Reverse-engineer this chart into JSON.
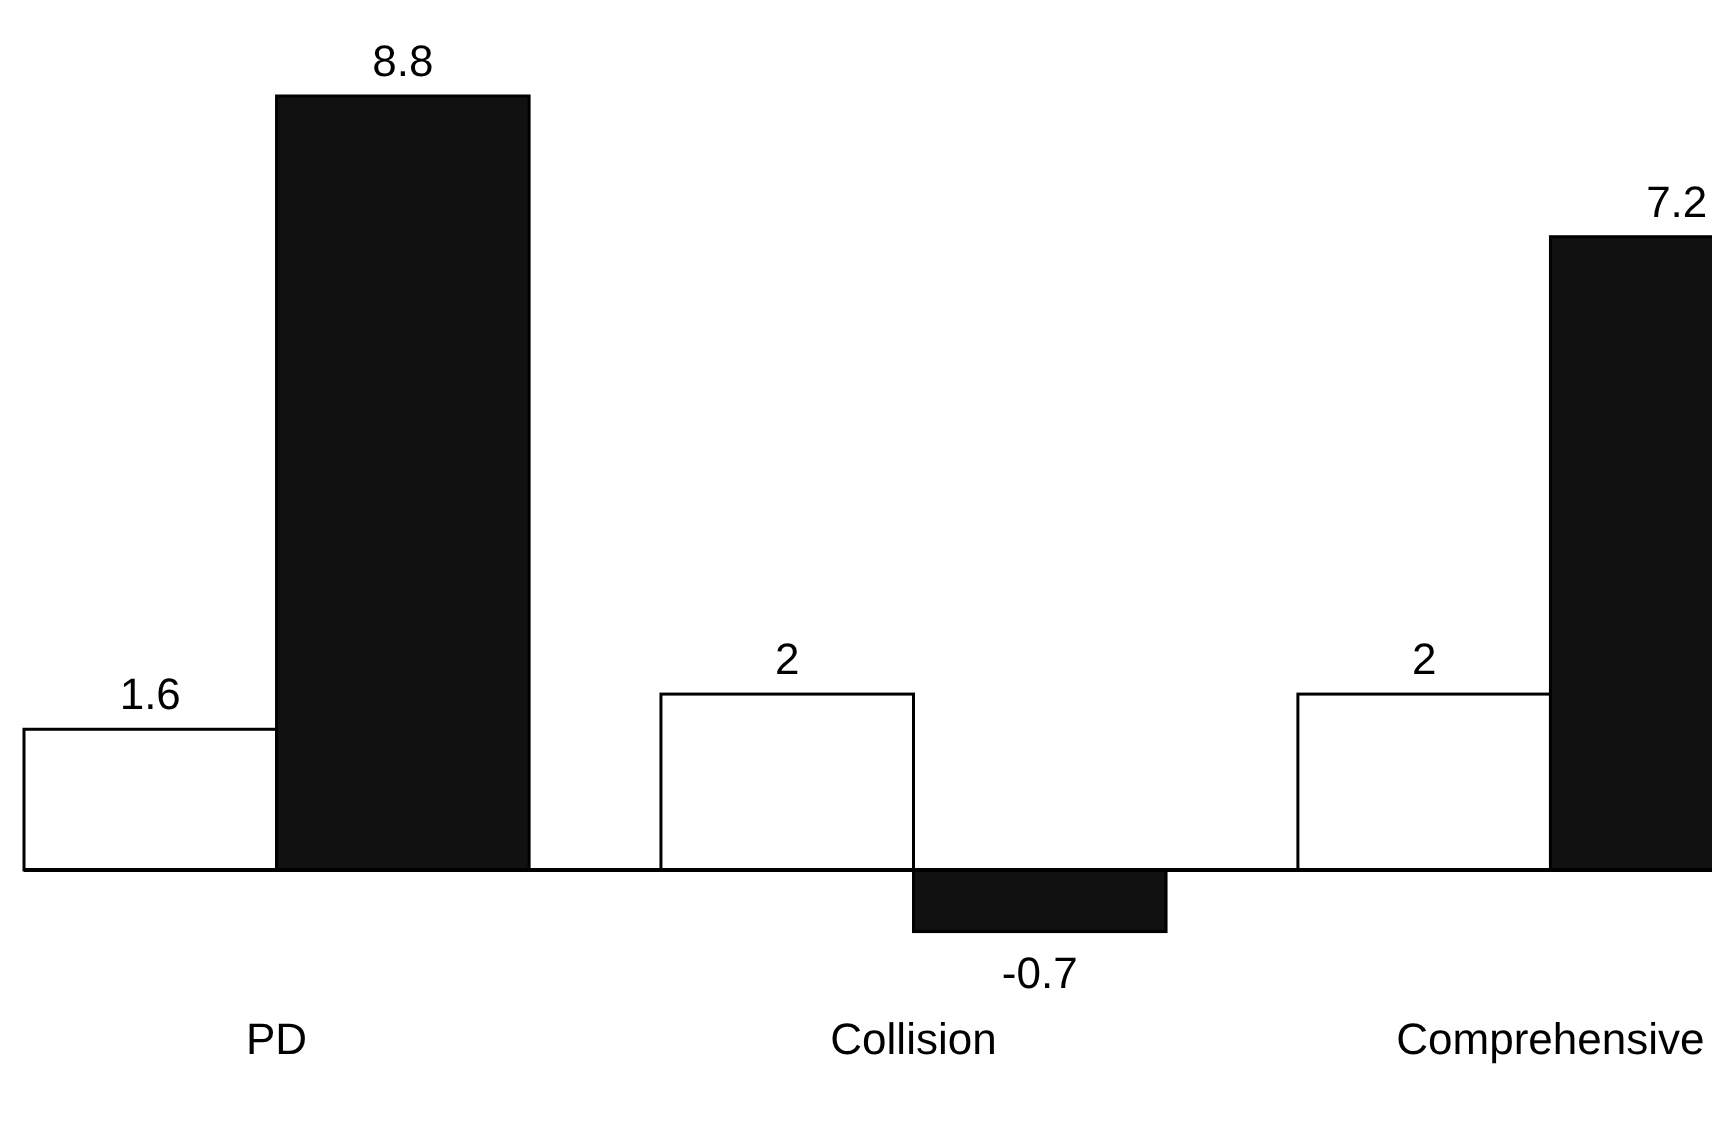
{
  "chart_data": {
    "type": "bar",
    "categories": [
      "PD",
      "Collision",
      "Comprehensive"
    ],
    "series": [
      {
        "color": "#ffffff",
        "values": [
          1.6,
          2,
          2
        ]
      },
      {
        "color": "#111111",
        "values": [
          8.8,
          -0.7,
          7.2
        ]
      }
    ],
    "data_labels": true
  }
}
